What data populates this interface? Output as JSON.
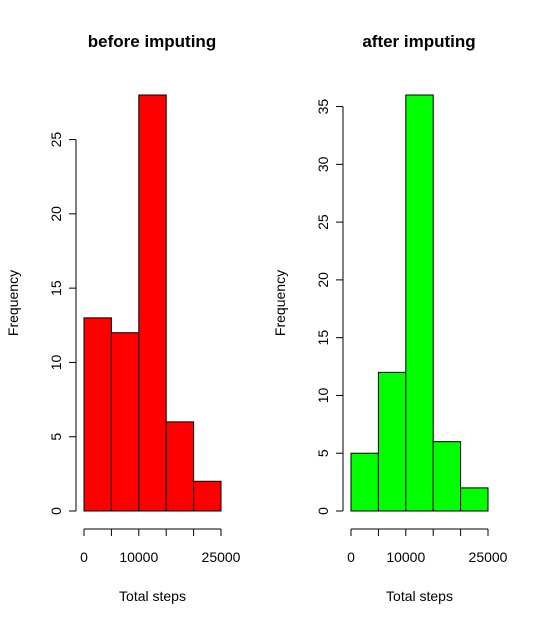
{
  "chart_data": [
    {
      "type": "bar",
      "title": "before imputing",
      "xlabel": "Total steps",
      "ylabel": "Frequency",
      "bins": [
        [
          0,
          5000
        ],
        [
          5000,
          10000
        ],
        [
          10000,
          15000
        ],
        [
          15000,
          20000
        ],
        [
          20000,
          25000
        ]
      ],
      "values": [
        13,
        12,
        28,
        6,
        2
      ],
      "bar_color": "#FF0000",
      "xticks": [
        0,
        10000,
        25000
      ],
      "xtick_marks": [
        0,
        5000,
        10000,
        15000,
        20000,
        25000
      ],
      "yticks": [
        0,
        5,
        10,
        15,
        20,
        25
      ],
      "xlim": [
        0,
        25000
      ],
      "ylim": [
        0,
        28
      ]
    },
    {
      "type": "bar",
      "title": "after imputing",
      "xlabel": "Total steps",
      "ylabel": "Frequency",
      "bins": [
        [
          0,
          5000
        ],
        [
          5000,
          10000
        ],
        [
          10000,
          15000
        ],
        [
          15000,
          20000
        ],
        [
          20000,
          25000
        ]
      ],
      "values": [
        5,
        12,
        36,
        6,
        2
      ],
      "bar_color": "#00FF00",
      "xticks": [
        0,
        10000,
        25000
      ],
      "xtick_marks": [
        0,
        5000,
        10000,
        15000,
        20000,
        25000
      ],
      "yticks": [
        0,
        5,
        10,
        15,
        20,
        25,
        30,
        35
      ],
      "xlim": [
        0,
        25000
      ],
      "ylim": [
        0,
        36
      ]
    }
  ]
}
